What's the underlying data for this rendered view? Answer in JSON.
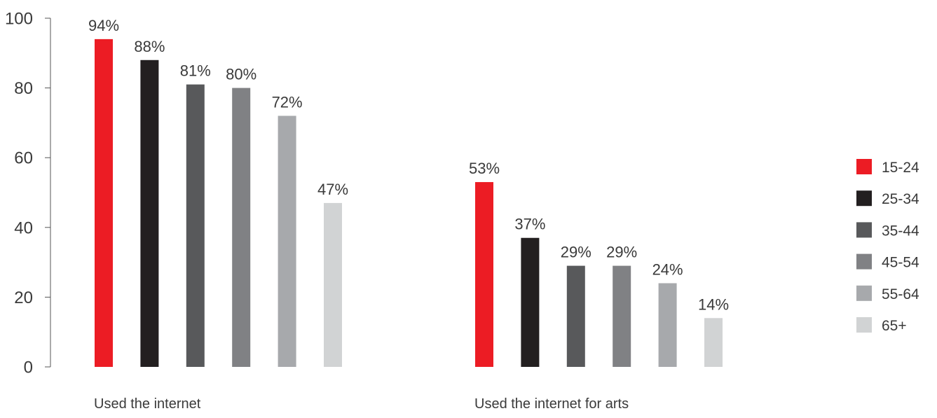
{
  "chart_data": {
    "type": "bar",
    "ylim": [
      0,
      100
    ],
    "yticks": [
      "0",
      "20",
      "40",
      "60",
      "80",
      "100"
    ],
    "value_suffix": "%",
    "groups": [
      "Used the internet",
      "Used the internet for arts"
    ],
    "series": [
      {
        "name": "15-24",
        "color": "#ec1c24",
        "values": [
          94,
          53
        ]
      },
      {
        "name": "25-34",
        "color": "#231f20",
        "values": [
          88,
          37
        ]
      },
      {
        "name": "35-44",
        "color": "#58595b",
        "values": [
          81,
          29
        ]
      },
      {
        "name": "45-54",
        "color": "#808184",
        "values": [
          80,
          29
        ]
      },
      {
        "name": "55-64",
        "color": "#a7a9ac",
        "values": [
          72,
          24
        ]
      },
      {
        "name": "65+",
        "color": "#d1d3d4",
        "values": [
          47,
          14
        ]
      }
    ],
    "legend_position": "right"
  }
}
